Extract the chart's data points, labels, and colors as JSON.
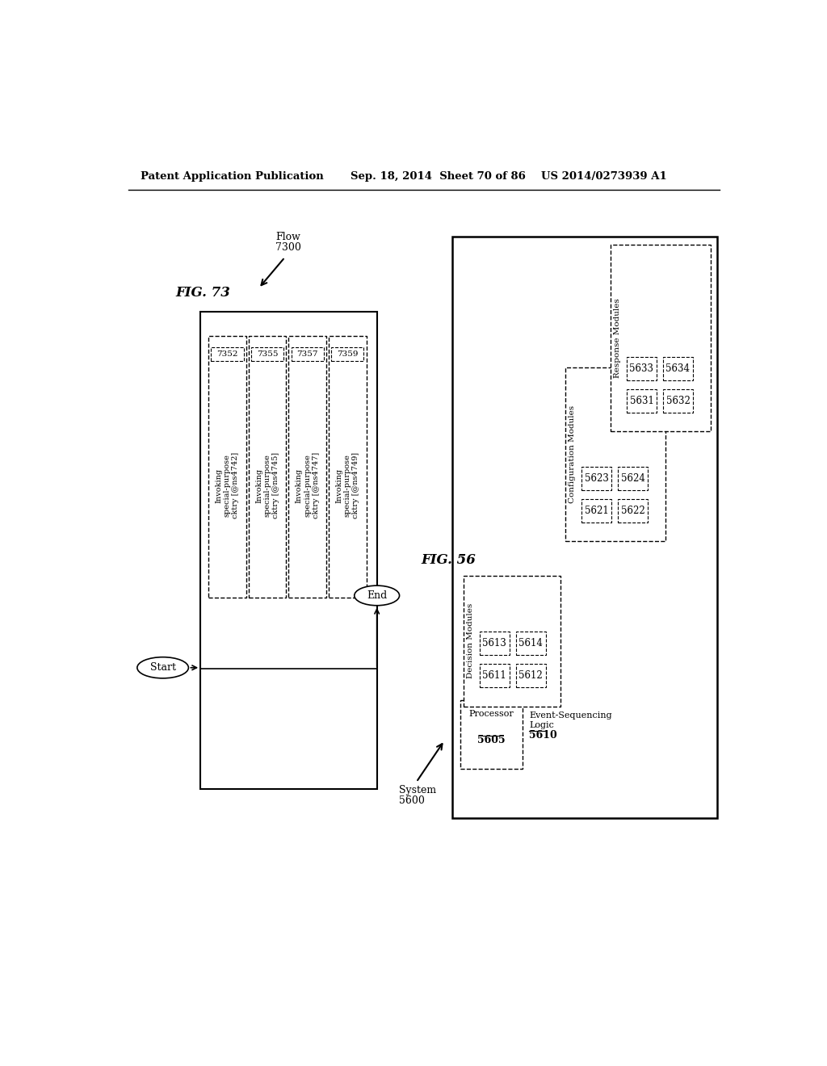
{
  "header_left": "Patent Application Publication",
  "header_mid": "Sep. 18, 2014  Sheet 70 of 86",
  "header_right": "US 2014/0273939 A1",
  "fig73_label": "FIG. 73",
  "fig56_label": "FIG. 56",
  "flow_label": "Flow\n7300",
  "start_label": "Start",
  "end_label": "End",
  "system_label": "System\n5600",
  "boxes_73": [
    {
      "id": "7352",
      "lines": [
        "Invoking",
        "special-purpose",
        "cktry [@ns4742]"
      ]
    },
    {
      "id": "7355",
      "lines": [
        "Invoking",
        "special-purpose",
        "cktry [@ns4745]"
      ]
    },
    {
      "id": "7357",
      "lines": [
        "Invoking",
        "special-purpose",
        "cktry [@ns4747]"
      ]
    },
    {
      "id": "7359",
      "lines": [
        "Invoking",
        "special-purpose",
        "cktry [@ns4749]"
      ]
    }
  ],
  "processor_label": "Processor",
  "processor_id": "5605",
  "event_seq_line1": "Event-Sequencing",
  "event_seq_line2": "Logic",
  "event_seq_id": "5610",
  "decision_modules_label": "Decision Modules",
  "decision_modules": [
    [
      "5611",
      "5612"
    ],
    [
      "5613",
      "5614"
    ]
  ],
  "config_modules_label": "Configuration Modules",
  "config_modules": [
    [
      "5621",
      "5622"
    ],
    [
      "5623",
      "5624"
    ]
  ],
  "response_modules_label": "Response Modules",
  "response_modules": [
    [
      "5631",
      "5632"
    ],
    [
      "5633",
      "5634"
    ]
  ]
}
